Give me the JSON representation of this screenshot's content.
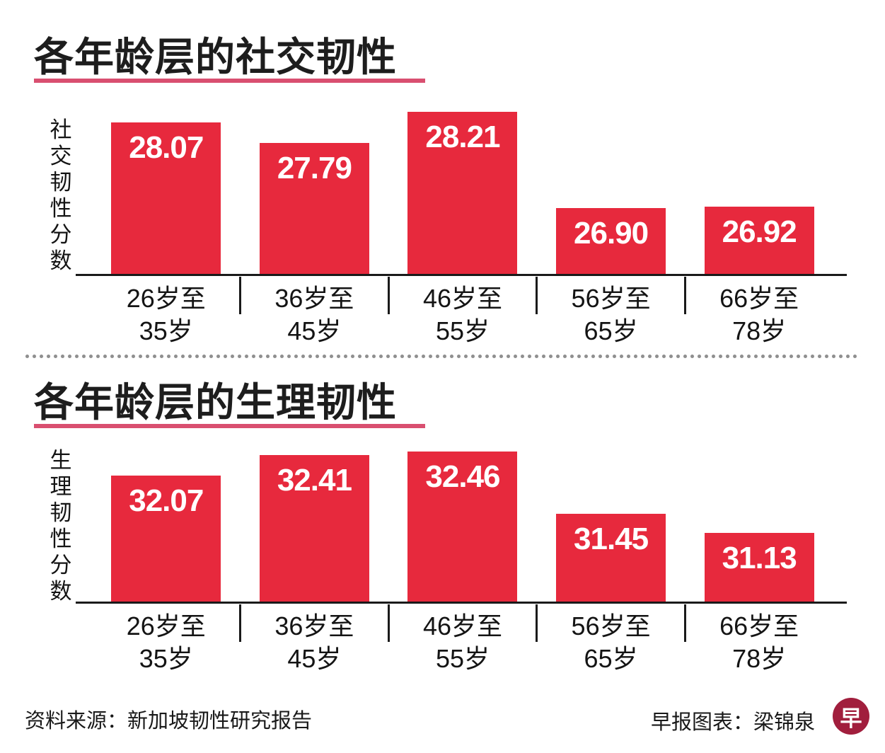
{
  "theme": {
    "background": "#ffffff",
    "bar_red": "#e7293d",
    "title_underline_pink": "#d94f70",
    "divider_dot_gray": "#8f8f8f",
    "logo_red": "#a11e3d",
    "text_black": "#1a1a1a"
  },
  "chart_data": [
    {
      "type": "bar",
      "title": "各年龄层的社交韧性",
      "ylabel": "社交韧性分数",
      "xlabel": "",
      "categories": [
        [
          "26岁至",
          "35岁"
        ],
        [
          "36岁至",
          "45岁"
        ],
        [
          "46岁至",
          "55岁"
        ],
        [
          "56岁至",
          "65岁"
        ],
        [
          "66岁至",
          "78岁"
        ]
      ],
      "values": [
        28.07,
        27.79,
        28.21,
        26.9,
        26.92
      ],
      "labels": [
        "28.07",
        "27.79",
        "28.21",
        "26.90",
        "26.92"
      ],
      "ylim": [
        26,
        28.5
      ],
      "bar_color": "#e7293d",
      "grid": false,
      "legend": false,
      "value_labels_position": "inside-top"
    },
    {
      "type": "bar",
      "title": "各年龄层的生理韧性",
      "ylabel": "生理韧性分数",
      "xlabel": "",
      "categories": [
        [
          "26岁至",
          "35岁"
        ],
        [
          "36岁至",
          "45岁"
        ],
        [
          "46岁至",
          "55岁"
        ],
        [
          "56岁至",
          "65岁"
        ],
        [
          "66岁至",
          "78岁"
        ]
      ],
      "values": [
        32.07,
        32.41,
        32.46,
        31.45,
        31.13
      ],
      "labels": [
        "32.07",
        "32.41",
        "32.46",
        "31.45",
        "31.13"
      ],
      "ylim": [
        30,
        32.8
      ],
      "bar_color": "#e7293d",
      "grid": false,
      "legend": false,
      "value_labels_position": "inside-top"
    }
  ],
  "footer": {
    "source": "资料来源：新加坡韧性研究报告",
    "credit": "早报图表：梁锦泉",
    "logo_char": "早"
  }
}
